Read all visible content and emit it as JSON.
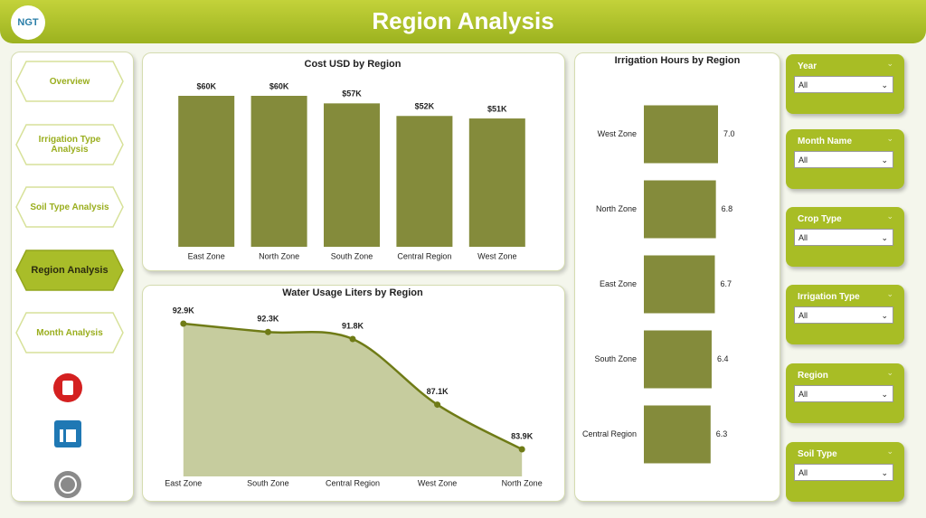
{
  "header": {
    "logo": "NGT",
    "title": "Region Analysis"
  },
  "nav": {
    "items": [
      {
        "label": "Overview",
        "active": false
      },
      {
        "label": "Irrigation Type Analysis",
        "active": false
      },
      {
        "label": "Soil Type Analysis",
        "active": false
      },
      {
        "label": "Region Analysis",
        "active": true
      },
      {
        "label": "Month Analysis",
        "active": false
      }
    ]
  },
  "chart_data": [
    {
      "type": "bar",
      "title": "Cost USD by Region",
      "categories": [
        "East Zone",
        "North Zone",
        "South Zone",
        "Central Region",
        "West Zone"
      ],
      "values": [
        60000,
        60000,
        57000,
        52000,
        51000
      ],
      "value_labels": [
        "$60K",
        "$60K",
        "$57K",
        "$52K",
        "$51K"
      ],
      "color": "#848b3b"
    },
    {
      "type": "area",
      "title": "Water Usage Liters by Region",
      "categories": [
        "East Zone",
        "South Zone",
        "Central Region",
        "West Zone",
        "North Zone"
      ],
      "values": [
        92900,
        92300,
        91800,
        87100,
        83900
      ],
      "value_labels": [
        "92.9K",
        "92.3K",
        "91.8K",
        "87.1K",
        "83.9K"
      ],
      "color": "#6f7b16",
      "fill": "#c6cc9e"
    },
    {
      "type": "bar",
      "orientation": "horizontal",
      "title": "Irrigation Hours by Region",
      "categories": [
        "West Zone",
        "North Zone",
        "East Zone",
        "South Zone",
        "Central Region"
      ],
      "values": [
        7.0,
        6.8,
        6.7,
        6.4,
        6.3
      ],
      "value_labels": [
        "7.0",
        "6.8",
        "6.7",
        "6.4",
        "6.3"
      ],
      "color": "#848b3b"
    }
  ],
  "filters": [
    {
      "label": "Year",
      "value": "All"
    },
    {
      "label": "Month Name",
      "value": "All"
    },
    {
      "label": "Crop Type",
      "value": "All"
    },
    {
      "label": "Irrigation Type",
      "value": "All"
    },
    {
      "label": "Region",
      "value": "All"
    },
    {
      "label": "Soil Type",
      "value": "All"
    }
  ]
}
